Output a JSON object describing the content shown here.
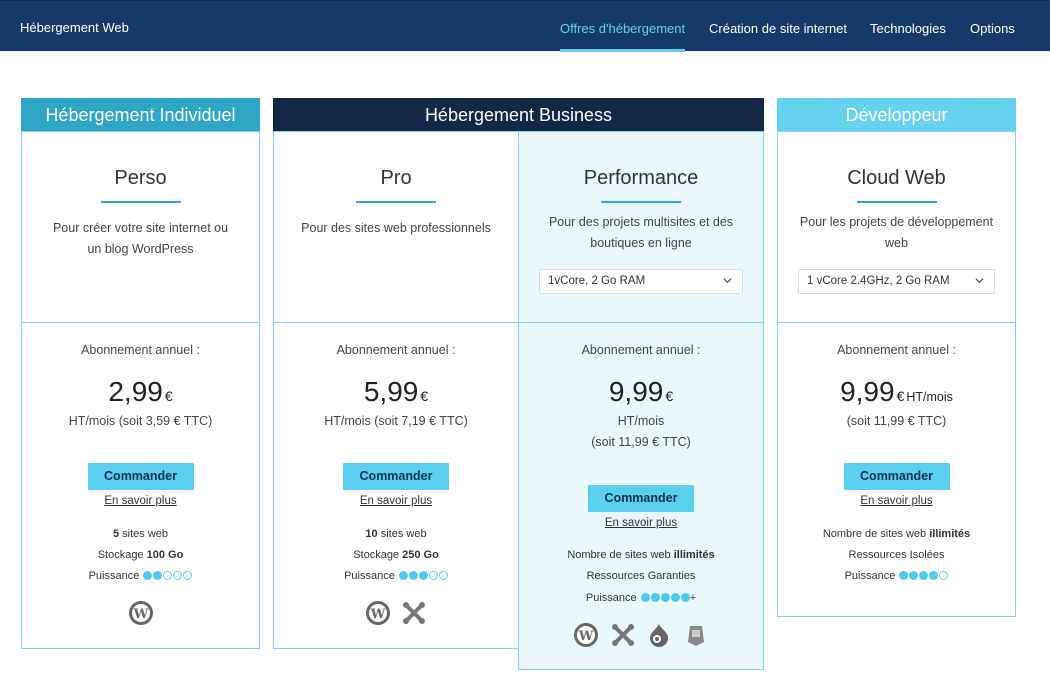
{
  "header": {
    "brand": "Hébergement Web",
    "nav": [
      "Offres d'hébergement",
      "Création de site internet",
      "Technologies",
      "Options"
    ],
    "active_index": 0
  },
  "categories": {
    "individuel": "Hébergement Individuel",
    "business": "Hébergement Business",
    "developpeur": "Développeur"
  },
  "plans": [
    {
      "name": "Perso",
      "desc_lines": [
        "Pour créer votre site internet ou",
        "un blog WordPress"
      ],
      "abonnement": "Abonnement annuel :",
      "price": "2,99",
      "currency": "€",
      "price_suffix": "",
      "sub1": "HT/mois (soit 3,59 € TTC)",
      "button": "Commander",
      "more": "En savoir plus",
      "feat1_pre": "5",
      "feat1_post": " sites web",
      "feat2_pre": "Stockage ",
      "feat2_bold": "100 Go",
      "power_label": "Puissance",
      "power_level": 2,
      "power_max": 5,
      "icons": [
        "wordpress-icon"
      ]
    },
    {
      "name": "Pro",
      "desc_lines": [
        "Pour des sites web professionnels"
      ],
      "abonnement": "Abonnement annuel :",
      "price": "5,99",
      "currency": "€",
      "price_suffix": "",
      "sub1": "HT/mois (soit 7,19 € TTC)",
      "button": "Commander",
      "more": "En savoir plus",
      "feat1_pre": "10",
      "feat1_post": " sites web",
      "feat2_pre": "Stockage ",
      "feat2_bold": "250 Go",
      "power_label": "Puissance",
      "power_level": 3,
      "power_max": 5,
      "icons": [
        "wordpress-icon",
        "joomla-icon"
      ]
    },
    {
      "name": "Performance",
      "desc_lines": [
        "Pour des projets multisites et des",
        "boutiques en ligne"
      ],
      "select": "1vCore, 2 Go RAM",
      "abonnement": "Abonnement annuel :",
      "price": "9,99",
      "currency": "€",
      "price_suffix": "",
      "sub1": "HT/mois",
      "sub2": "(soit 11,99 € TTC)",
      "button": "Commander",
      "more": "En savoir plus",
      "feat1_pre": "Nombre de sites web ",
      "feat1_bold": "illimités",
      "feat2": "Ressources Garanties",
      "power_label": "Puissance",
      "power_level": 5,
      "power_max": 5,
      "power_extra": "+",
      "icons": [
        "wordpress-icon",
        "joomla-icon",
        "drupal-icon",
        "prestashop-icon"
      ]
    },
    {
      "name": "Cloud Web",
      "desc_lines": [
        "Pour les projets de développement",
        "web"
      ],
      "select": "1 vCore 2.4GHz, 2 Go RAM",
      "abonnement": "Abonnement annuel :",
      "price": "9,99",
      "currency": "€",
      "price_suffix": "HT/mois",
      "sub1": "(soit 11,99 € TTC)",
      "button": "Commander",
      "more": "En savoir plus",
      "feat1_pre": "Nombre de sites web ",
      "feat1_bold": "illimités",
      "feat2": "Ressources Isolées",
      "power_label": "Puissance",
      "power_level": 4,
      "power_max": 5
    }
  ],
  "colors": {
    "navbar": "#163b6a",
    "accent": "#5ad0ee",
    "individuel": "#2fa6c6",
    "business": "#142744",
    "developpeur": "#67d2ee"
  }
}
